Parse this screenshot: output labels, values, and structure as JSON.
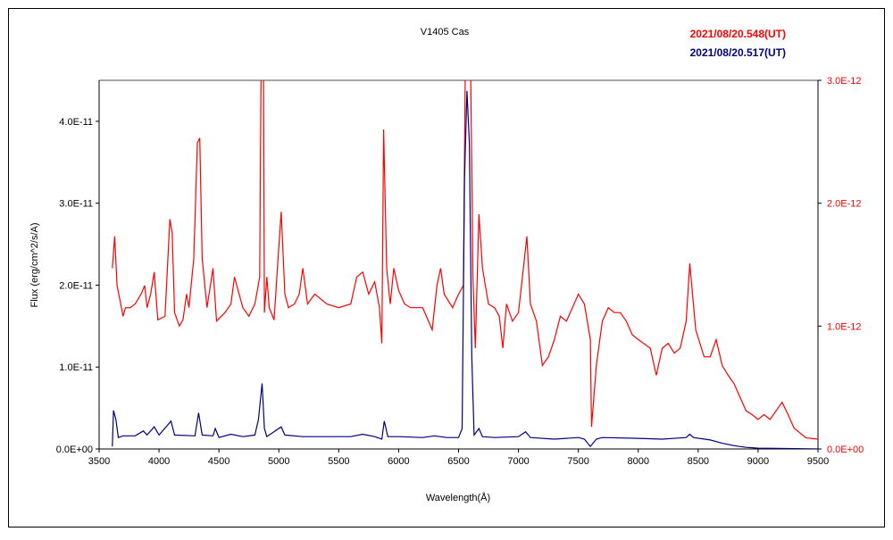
{
  "chart_data": {
    "type": "line",
    "title": "V1405 Cas",
    "xlabel": "Wavelength(Å)",
    "ylabel": "Flux (erg/cm^2/s/A)",
    "xlim": [
      3500,
      9500
    ],
    "ylim_left": [
      0,
      4.5e-11
    ],
    "ylim_right": [
      0,
      3e-12
    ],
    "x_ticks": [
      "3500",
      "4000",
      "4500",
      "5000",
      "5500",
      "6000",
      "6500",
      "7000",
      "7500",
      "8000",
      "8500",
      "9000",
      "9500"
    ],
    "y_ticks_left": [
      "0.0E+00",
      "1.0E-11",
      "2.0E-11",
      "3.0E-11",
      "4.0E-11"
    ],
    "y_ticks_right": [
      "0.0E+00",
      "1.0E-12",
      "2.0E-12",
      "3.0E-12"
    ],
    "grid": false,
    "legend_position": "top-right",
    "series": [
      {
        "name": "2021/08/20.548(UT)",
        "color": "#ff0000",
        "axis": "right",
        "unit": "1E-12",
        "points": [
          [
            3610,
            1.47
          ],
          [
            3630,
            1.73
          ],
          [
            3650,
            1.33
          ],
          [
            3680,
            1.18
          ],
          [
            3700,
            1.08
          ],
          [
            3720,
            1.15
          ],
          [
            3760,
            1.15
          ],
          [
            3800,
            1.18
          ],
          [
            3850,
            1.26
          ],
          [
            3880,
            1.33
          ],
          [
            3900,
            1.15
          ],
          [
            3930,
            1.26
          ],
          [
            3960,
            1.44
          ],
          [
            3990,
            1.05
          ],
          [
            4050,
            1.08
          ],
          [
            4090,
            1.87
          ],
          [
            4110,
            1.76
          ],
          [
            4130,
            1.11
          ],
          [
            4170,
            1.0
          ],
          [
            4200,
            1.05
          ],
          [
            4230,
            1.26
          ],
          [
            4250,
            1.15
          ],
          [
            4290,
            1.55
          ],
          [
            4320,
            2.49
          ],
          [
            4340,
            2.53
          ],
          [
            4360,
            1.55
          ],
          [
            4400,
            1.15
          ],
          [
            4450,
            1.47
          ],
          [
            4480,
            1.04
          ],
          [
            4550,
            1.11
          ],
          [
            4600,
            1.18
          ],
          [
            4630,
            1.4
          ],
          [
            4660,
            1.29
          ],
          [
            4700,
            1.15
          ],
          [
            4750,
            1.08
          ],
          [
            4800,
            1.18
          ],
          [
            4840,
            1.4
          ],
          [
            4855,
            3.6
          ],
          [
            4870,
            3.6
          ],
          [
            4880,
            1.11
          ],
          [
            4900,
            1.4
          ],
          [
            4920,
            1.15
          ],
          [
            4960,
            1.05
          ],
          [
            4990,
            1.5
          ],
          [
            5020,
            1.93
          ],
          [
            5050,
            1.26
          ],
          [
            5080,
            1.15
          ],
          [
            5130,
            1.18
          ],
          [
            5170,
            1.26
          ],
          [
            5200,
            1.47
          ],
          [
            5240,
            1.18
          ],
          [
            5300,
            1.26
          ],
          [
            5400,
            1.18
          ],
          [
            5500,
            1.15
          ],
          [
            5600,
            1.18
          ],
          [
            5650,
            1.4
          ],
          [
            5700,
            1.44
          ],
          [
            5750,
            1.26
          ],
          [
            5800,
            1.36
          ],
          [
            5840,
            1.15
          ],
          [
            5860,
            0.86
          ],
          [
            5875,
            2.6
          ],
          [
            5900,
            1.47
          ],
          [
            5930,
            1.18
          ],
          [
            5960,
            1.47
          ],
          [
            6000,
            1.29
          ],
          [
            6050,
            1.18
          ],
          [
            6100,
            1.15
          ],
          [
            6200,
            1.15
          ],
          [
            6280,
            0.97
          ],
          [
            6320,
            1.33
          ],
          [
            6350,
            1.47
          ],
          [
            6380,
            1.26
          ],
          [
            6450,
            1.15
          ],
          [
            6500,
            1.26
          ],
          [
            6540,
            1.33
          ],
          [
            6560,
            3.5
          ],
          [
            6600,
            3.2
          ],
          [
            6620,
            1.4
          ],
          [
            6640,
            0.82
          ],
          [
            6670,
            1.91
          ],
          [
            6700,
            1.47
          ],
          [
            6750,
            1.18
          ],
          [
            6800,
            1.15
          ],
          [
            6840,
            1.08
          ],
          [
            6870,
            0.82
          ],
          [
            6900,
            1.18
          ],
          [
            6950,
            1.04
          ],
          [
            7000,
            1.11
          ],
          [
            7050,
            1.55
          ],
          [
            7070,
            1.73
          ],
          [
            7100,
            1.18
          ],
          [
            7150,
            1.04
          ],
          [
            7200,
            0.68
          ],
          [
            7250,
            0.75
          ],
          [
            7300,
            0.89
          ],
          [
            7350,
            1.08
          ],
          [
            7400,
            1.04
          ],
          [
            7450,
            1.15
          ],
          [
            7500,
            1.26
          ],
          [
            7550,
            1.18
          ],
          [
            7600,
            0.89
          ],
          [
            7610,
            0.18
          ],
          [
            7650,
            0.68
          ],
          [
            7700,
            1.04
          ],
          [
            7750,
            1.15
          ],
          [
            7800,
            1.11
          ],
          [
            7850,
            1.11
          ],
          [
            7900,
            1.04
          ],
          [
            7950,
            0.93
          ],
          [
            8000,
            0.89
          ],
          [
            8100,
            0.82
          ],
          [
            8150,
            0.6
          ],
          [
            8200,
            0.82
          ],
          [
            8250,
            0.86
          ],
          [
            8300,
            0.78
          ],
          [
            8350,
            0.82
          ],
          [
            8400,
            1.04
          ],
          [
            8430,
            1.51
          ],
          [
            8480,
            0.97
          ],
          [
            8550,
            0.75
          ],
          [
            8600,
            0.75
          ],
          [
            8650,
            0.89
          ],
          [
            8700,
            0.68
          ],
          [
            8750,
            0.6
          ],
          [
            8800,
            0.53
          ],
          [
            8850,
            0.42
          ],
          [
            8900,
            0.31
          ],
          [
            8950,
            0.28
          ],
          [
            9000,
            0.24
          ],
          [
            9050,
            0.28
          ],
          [
            9100,
            0.24
          ],
          [
            9150,
            0.31
          ],
          [
            9200,
            0.38
          ],
          [
            9250,
            0.28
          ],
          [
            9300,
            0.17
          ],
          [
            9400,
            0.09
          ],
          [
            9500,
            0.08
          ]
        ]
      },
      {
        "name": "2021/08/20.517(UT)",
        "color": "#000080",
        "axis": "left",
        "unit": "1E-11",
        "points": [
          [
            3610,
            0.03
          ],
          [
            3620,
            0.47
          ],
          [
            3640,
            0.36
          ],
          [
            3660,
            0.14
          ],
          [
            3700,
            0.16
          ],
          [
            3800,
            0.16
          ],
          [
            3870,
            0.22
          ],
          [
            3900,
            0.17
          ],
          [
            3960,
            0.27
          ],
          [
            4000,
            0.17
          ],
          [
            4100,
            0.34
          ],
          [
            4130,
            0.17
          ],
          [
            4300,
            0.16
          ],
          [
            4330,
            0.44
          ],
          [
            4360,
            0.17
          ],
          [
            4450,
            0.16
          ],
          [
            4470,
            0.25
          ],
          [
            4500,
            0.14
          ],
          [
            4600,
            0.18
          ],
          [
            4700,
            0.15
          ],
          [
            4800,
            0.17
          ],
          [
            4830,
            0.36
          ],
          [
            4860,
            0.8
          ],
          [
            4880,
            0.25
          ],
          [
            4900,
            0.15
          ],
          [
            5020,
            0.27
          ],
          [
            5050,
            0.17
          ],
          [
            5200,
            0.15
          ],
          [
            5400,
            0.15
          ],
          [
            5600,
            0.15
          ],
          [
            5700,
            0.18
          ],
          [
            5800,
            0.15
          ],
          [
            5860,
            0.12
          ],
          [
            5880,
            0.34
          ],
          [
            5910,
            0.15
          ],
          [
            6000,
            0.15
          ],
          [
            6200,
            0.14
          ],
          [
            6300,
            0.16
          ],
          [
            6400,
            0.14
          ],
          [
            6500,
            0.14
          ],
          [
            6530,
            0.25
          ],
          [
            6550,
            3.3
          ],
          [
            6570,
            4.37
          ],
          [
            6590,
            3.74
          ],
          [
            6610,
            1.13
          ],
          [
            6630,
            0.17
          ],
          [
            6670,
            0.25
          ],
          [
            6700,
            0.15
          ],
          [
            6800,
            0.14
          ],
          [
            7000,
            0.15
          ],
          [
            7060,
            0.21
          ],
          [
            7100,
            0.14
          ],
          [
            7300,
            0.12
          ],
          [
            7500,
            0.14
          ],
          [
            7550,
            0.12
          ],
          [
            7600,
            0.03
          ],
          [
            7650,
            0.12
          ],
          [
            7700,
            0.14
          ],
          [
            8000,
            0.13
          ],
          [
            8200,
            0.12
          ],
          [
            8400,
            0.14
          ],
          [
            8430,
            0.18
          ],
          [
            8460,
            0.14
          ],
          [
            8600,
            0.11
          ],
          [
            8700,
            0.07
          ],
          [
            8800,
            0.04
          ],
          [
            8900,
            0.02
          ],
          [
            9000,
            0.01
          ],
          [
            9500,
            0.0
          ]
        ]
      }
    ]
  }
}
